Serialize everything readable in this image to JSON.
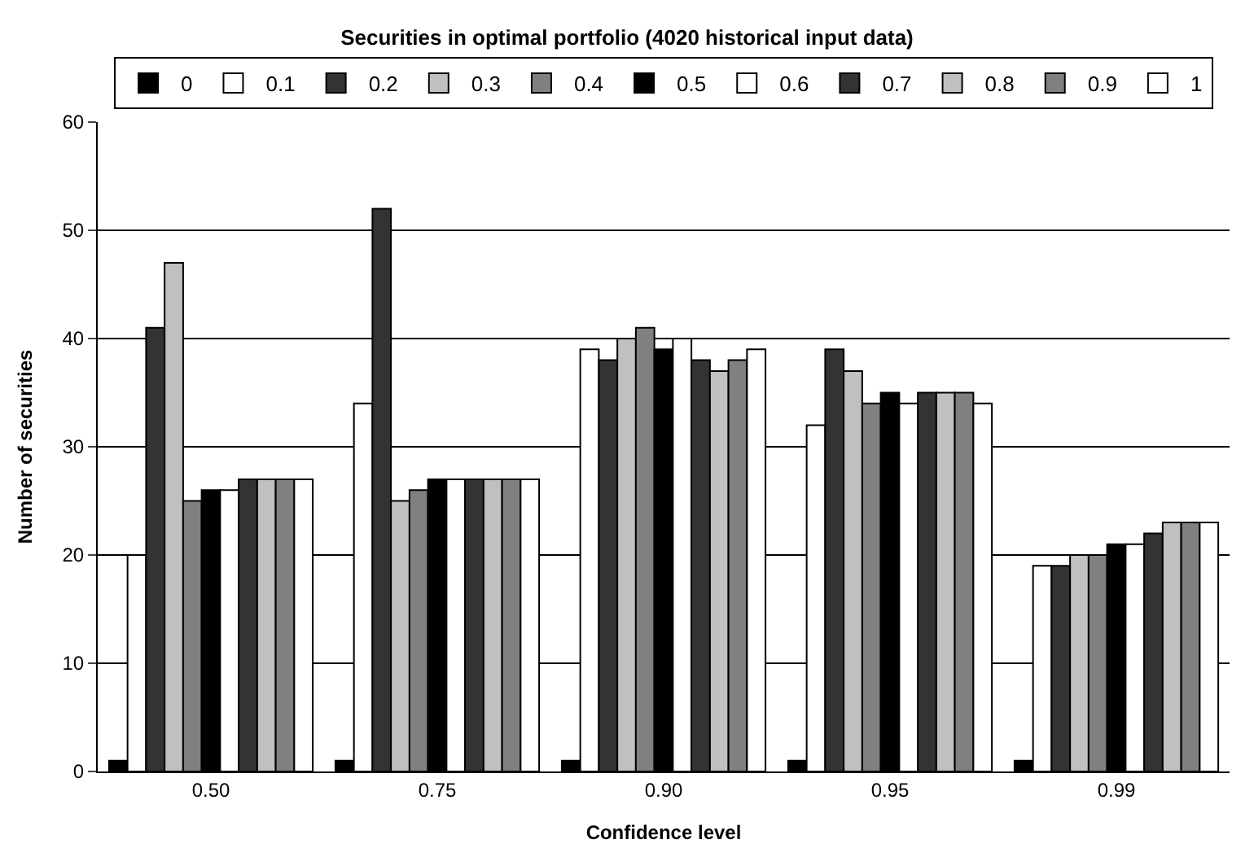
{
  "chart_data": {
    "type": "bar",
    "title": "Securities in optimal portfolio (4020 historical input data)",
    "xlabel": "Confidence level",
    "ylabel": "Number of securities",
    "categories": [
      "0.50",
      "0.75",
      "0.90",
      "0.95",
      "0.99"
    ],
    "series": [
      {
        "name": "0",
        "color": "#000000",
        "values": [
          1,
          1,
          1,
          1,
          1
        ]
      },
      {
        "name": "0.1",
        "color": "#ffffff",
        "values": [
          20,
          34,
          39,
          32,
          19
        ]
      },
      {
        "name": "0.2",
        "color": "#333333",
        "values": [
          41,
          52,
          38,
          39,
          19
        ]
      },
      {
        "name": "0.3",
        "color": "#c0c0c0",
        "values": [
          47,
          25,
          40,
          37,
          20
        ]
      },
      {
        "name": "0.4",
        "color": "#808080",
        "values": [
          25,
          26,
          41,
          34,
          20
        ]
      },
      {
        "name": "0.5",
        "color": "#000000",
        "values": [
          26,
          27,
          39,
          35,
          21
        ]
      },
      {
        "name": "0.6",
        "color": "#ffffff",
        "values": [
          26,
          27,
          40,
          34,
          21
        ]
      },
      {
        "name": "0.7",
        "color": "#333333",
        "values": [
          27,
          27,
          38,
          35,
          22
        ]
      },
      {
        "name": "0.8",
        "color": "#c0c0c0",
        "values": [
          27,
          27,
          37,
          35,
          23
        ]
      },
      {
        "name": "0.9",
        "color": "#808080",
        "values": [
          27,
          27,
          38,
          35,
          23
        ]
      },
      {
        "name": "1",
        "color": "#ffffff",
        "values": [
          27,
          27,
          39,
          34,
          23
        ]
      }
    ],
    "ylim": [
      0,
      60
    ],
    "yticks": [
      0,
      10,
      20,
      30,
      40,
      50,
      60
    ],
    "grid": "y",
    "legend": "top"
  }
}
